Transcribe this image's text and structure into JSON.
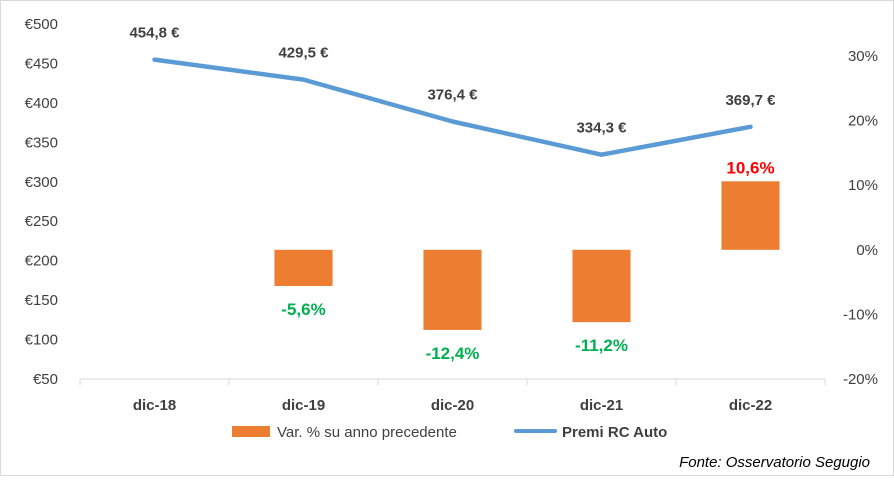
{
  "chart_data": {
    "type": "bar",
    "categories": [
      "dic-18",
      "dic-19",
      "dic-20",
      "dic-21",
      "dic-22"
    ],
    "series": [
      {
        "name": "Var. % su anno precedente",
        "kind": "bar",
        "axis": "right",
        "color": "#ED7D31",
        "values": [
          null,
          -5.6,
          -12.4,
          -11.2,
          10.6
        ],
        "labels": [
          "",
          "-5,6%",
          "-12,4%",
          "-11,2%",
          "10,6%"
        ],
        "label_colors": [
          "",
          "#00B050",
          "#00B050",
          "#00B050",
          "#FF0000"
        ]
      },
      {
        "name": "Premi RC Auto",
        "kind": "line",
        "axis": "left",
        "color": "#5B9BD5",
        "values": [
          454.8,
          429.5,
          376.4,
          334.3,
          369.7
        ],
        "labels": [
          "454,8 €",
          "429,5 €",
          "376,4 €",
          "334,3 €",
          "369,7 €"
        ]
      }
    ],
    "left_axis": {
      "ylim": [
        50,
        500
      ],
      "ticks": [
        50,
        100,
        150,
        200,
        250,
        300,
        350,
        400,
        450,
        500
      ],
      "tick_labels": [
        "€50",
        "€100",
        "€150",
        "€200",
        "€250",
        "€300",
        "€350",
        "€400",
        "€450",
        "€500"
      ]
    },
    "right_axis": {
      "ylim": [
        -20,
        35
      ],
      "ticks": [
        -20,
        -10,
        0,
        10,
        20,
        30
      ],
      "tick_labels": [
        "-20%",
        "-10%",
        "0%",
        "10%",
        "20%",
        "30%"
      ]
    },
    "grid": false,
    "legend_position": "bottom",
    "source_note": "Fonte: Osservatorio Segugio"
  }
}
